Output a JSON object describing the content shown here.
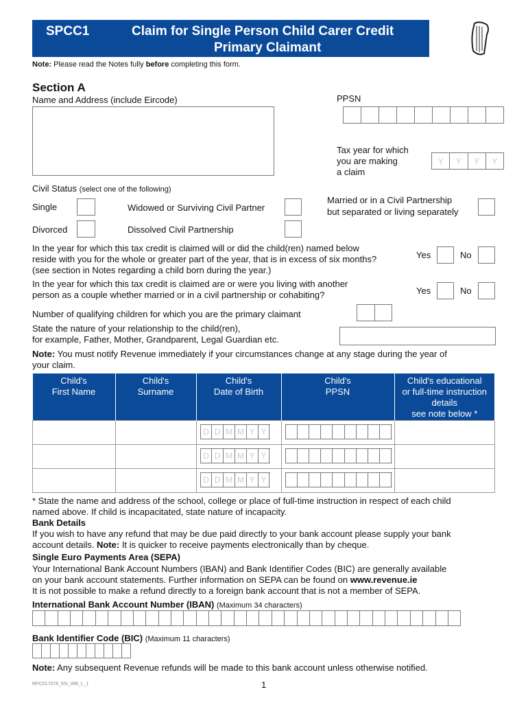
{
  "header": {
    "form_code": "SPCC1",
    "title_line1": "Claim for Single Person Child Carer Credit",
    "title_line2": "Primary Claimant",
    "brand_color": "#0b4a99"
  },
  "intro_note": {
    "label": "Note:",
    "text1": "Please read the Notes fully",
    "bold": "before",
    "text2": "completing this form."
  },
  "section_a": {
    "title": "Section A",
    "name_address_label": "Name and Address (include Eircode)",
    "ppsn_label": "PPSN",
    "tax_year_label": [
      "Tax year for which",
      "you are making",
      "a claim"
    ],
    "tax_year_placeholder": [
      "Y",
      "Y",
      "Y",
      "Y"
    ]
  },
  "civil_status": {
    "label": "Civil Status",
    "hint": "(select one of the following)",
    "options": [
      "Single",
      "Widowed or Surviving Civil Partner",
      "Married or in a Civil Partnership",
      "but separated or living separately",
      "Divorced",
      "Dissolved Civil Partnership"
    ]
  },
  "questions": {
    "q1": [
      "In the year for which this tax credit is claimed will or did the child(ren) named below",
      "reside with you for the whole or greater part of the year, that is in excess of six months?",
      "(see section in Notes regarding a child born during the year.)"
    ],
    "q2": [
      "In the year for which this tax credit is claimed are or were you living with another",
      "person as a couple whether married or in a civil partnership or cohabiting?"
    ],
    "yes": "Yes",
    "no": "No",
    "num_children": "Number of qualifying children for which you are the primary claimant",
    "relationship": [
      "State the nature of your relationship to the child(ren),",
      "for example, Father, Mother, Grandparent, Legal Guardian etc."
    ]
  },
  "change_note": {
    "label": "Note:",
    "text": "You must notify Revenue immediately if your circumstances change at any stage during the year of",
    "text2": "your claim."
  },
  "table": {
    "headers": [
      [
        "Child's",
        "First Name"
      ],
      [
        "Child's",
        "Surname"
      ],
      [
        "Child's",
        "Date of Birth"
      ],
      [
        "Child's",
        "PPSN"
      ],
      [
        "Child's educational",
        "or full-time instruction",
        "details",
        "see note below *"
      ]
    ],
    "dob_placeholder": [
      "D",
      "D",
      "M",
      "M",
      "Y",
      "Y"
    ]
  },
  "footnote": [
    "* State the name and address of the school, college or place of full-time instruction in respect of each child",
    "named above. If child is incapacitated, state nature of incapacity."
  ],
  "bank": {
    "title": "Bank Details",
    "text1": "If you wish to have any refund that may be due paid directly to your bank account please supply your bank",
    "text2a": "account details.",
    "note_label": "Note:",
    "text2b": "It is quicker to receive payments electronically than by cheque.",
    "sepa_title": "Single Euro Payments Area (SEPA)",
    "sepa1": "Your International Bank Account Numbers (IBAN) and Bank Identifier Codes (BIC) are generally available",
    "sepa2a": "on your bank account statements. Further information on SEPA can be found on",
    "sepa_link": "www.revenue.ie",
    "sepa3": "It is not possible to make a refund directly to a foreign bank account that is not a member of SEPA.",
    "iban_label": "International Bank Account Number (IBAN)",
    "iban_hint": "(Maximum 34 characters)",
    "bic_label": "Bank Identifier Code (BIC)",
    "bic_hint": "(Maximum 11 characters)",
    "final_note_label": "Note:",
    "final_note": "Any subsequent Revenue refunds will be made to this bank account unless otherwise notified."
  },
  "footer": {
    "code": "RPC017078_EN_WB_L_1",
    "page": "1"
  }
}
